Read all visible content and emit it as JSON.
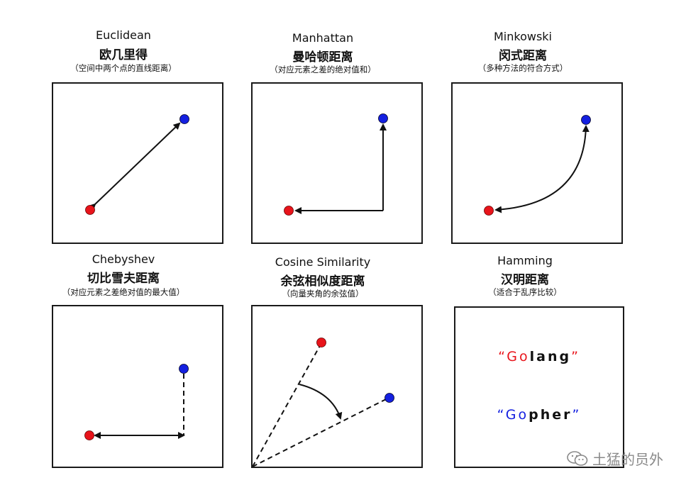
{
  "panels": [
    {
      "id": "euclidean",
      "title_en": "Euclidean",
      "title_zh": "欧几里得",
      "note": "（空间中两个点的直线距离）"
    },
    {
      "id": "manhattan",
      "title_en": "Manhattan",
      "title_zh": "曼哈顿距离",
      "note": "（对应元素之差的绝对值和）"
    },
    {
      "id": "minkowski",
      "title_en": "Minkowski",
      "title_zh": "闵式距离",
      "note": "（多种方法的符合方式）"
    },
    {
      "id": "chebyshev",
      "title_en": "Chebyshev",
      "title_zh": "切比雪夫距离",
      "note": "（对应元素之差绝对值的最大值）"
    },
    {
      "id": "cosine",
      "title_en": "Cosine Similarity",
      "title_zh": "余弦相似度距离",
      "note": "（向量夹角的余弦值）"
    },
    {
      "id": "hamming",
      "title_en": "Hamming",
      "title_zh": "汉明距离",
      "note": "（适合于乱序比较）"
    }
  ],
  "hamming_words": {
    "word1": {
      "open": "“",
      "chars": [
        "G",
        "o",
        "l",
        "a",
        "n",
        "g"
      ],
      "close": "”"
    },
    "word2": {
      "open": "“",
      "chars": [
        "G",
        "o",
        "p",
        "h",
        "e",
        "r"
      ],
      "close": "”"
    }
  },
  "colors": {
    "red": "#e8141b",
    "blue": "#1420e0",
    "black": "#111111"
  },
  "watermark": {
    "text": "土猛的员外",
    "icon": "wechat-icon"
  }
}
